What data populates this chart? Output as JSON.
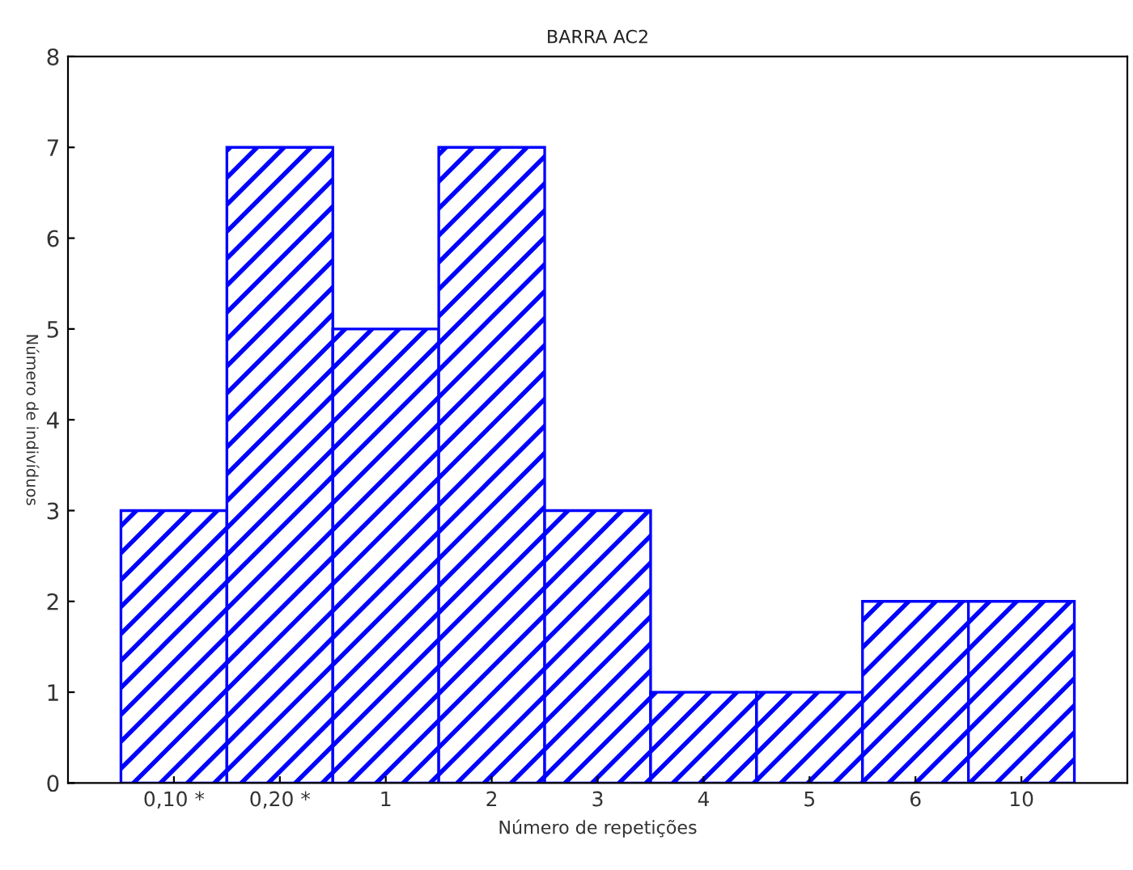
{
  "chart_data": {
    "type": "bar",
    "title": "BARRA AC2",
    "xlabel": "Número de repetições",
    "ylabel": "Número de indivíduos",
    "categories": [
      "0,10 *",
      "0,20 *",
      "1",
      "2",
      "3",
      "4",
      "5",
      "6",
      "10"
    ],
    "values": [
      3,
      7,
      5,
      7,
      3,
      1,
      1,
      2,
      2
    ],
    "color": "#0000ff",
    "ylim": [
      0,
      8
    ],
    "yticks": [
      0,
      1,
      2,
      3,
      4,
      5,
      6,
      7,
      8
    ],
    "grid": false
  }
}
